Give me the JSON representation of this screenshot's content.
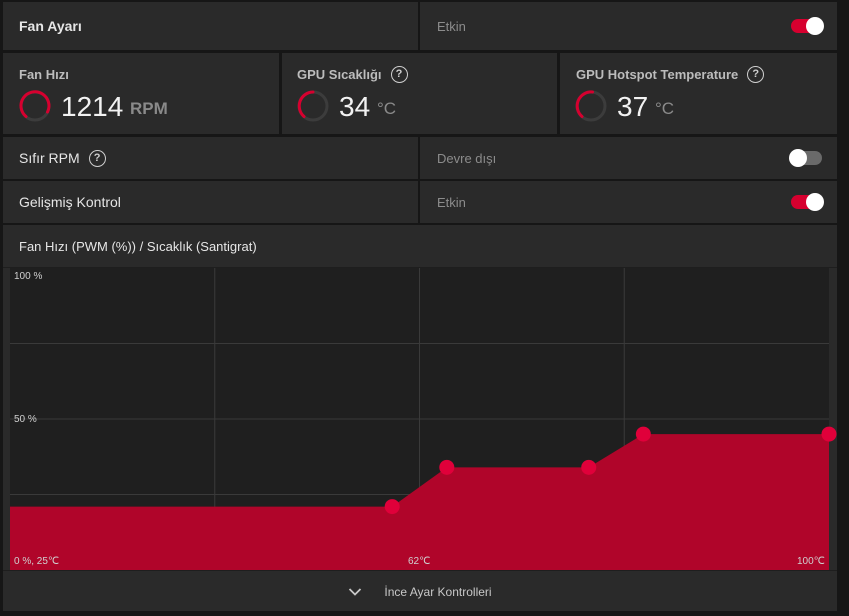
{
  "fan_setting": {
    "title": "Fan Ayarı",
    "status": "Etkin",
    "enabled": true
  },
  "metrics": [
    {
      "label": "Fan Hızı",
      "value": "1214",
      "unit": "RPM",
      "has_help": false
    },
    {
      "label": "GPU Sıcaklığı",
      "value": "34",
      "unit": "°C",
      "has_help": true
    },
    {
      "label": "GPU Hotspot Temperature",
      "value": "37",
      "unit": "°C",
      "has_help": true
    }
  ],
  "zero_rpm": {
    "label": "Sıfır RPM",
    "status": "Devre dışı",
    "enabled": false
  },
  "advanced": {
    "label": "Gelişmiş Kontrol",
    "status": "Etkin",
    "enabled": true
  },
  "chart_data": {
    "type": "area",
    "title": "Fan Hızı (PWM (%)) / Sıcaklık (Santigrat)",
    "xlim": [
      25,
      100
    ],
    "ylim": [
      0,
      100
    ],
    "y_ticks": [
      "100 %",
      "50 %"
    ],
    "x_ticks": [
      "0 %, 25℃",
      "62℃",
      "100℃"
    ],
    "points": [
      {
        "x": 25,
        "y": 21
      },
      {
        "x": 60,
        "y": 21
      },
      {
        "x": 65,
        "y": 34
      },
      {
        "x": 78,
        "y": 34
      },
      {
        "x": 83,
        "y": 45
      },
      {
        "x": 100,
        "y": 45
      }
    ],
    "grid": true,
    "fill_color": "#b0052a",
    "point_color": "#e0003a"
  },
  "fine_controls": {
    "label": "İnce Ayar Kontrolleri"
  }
}
